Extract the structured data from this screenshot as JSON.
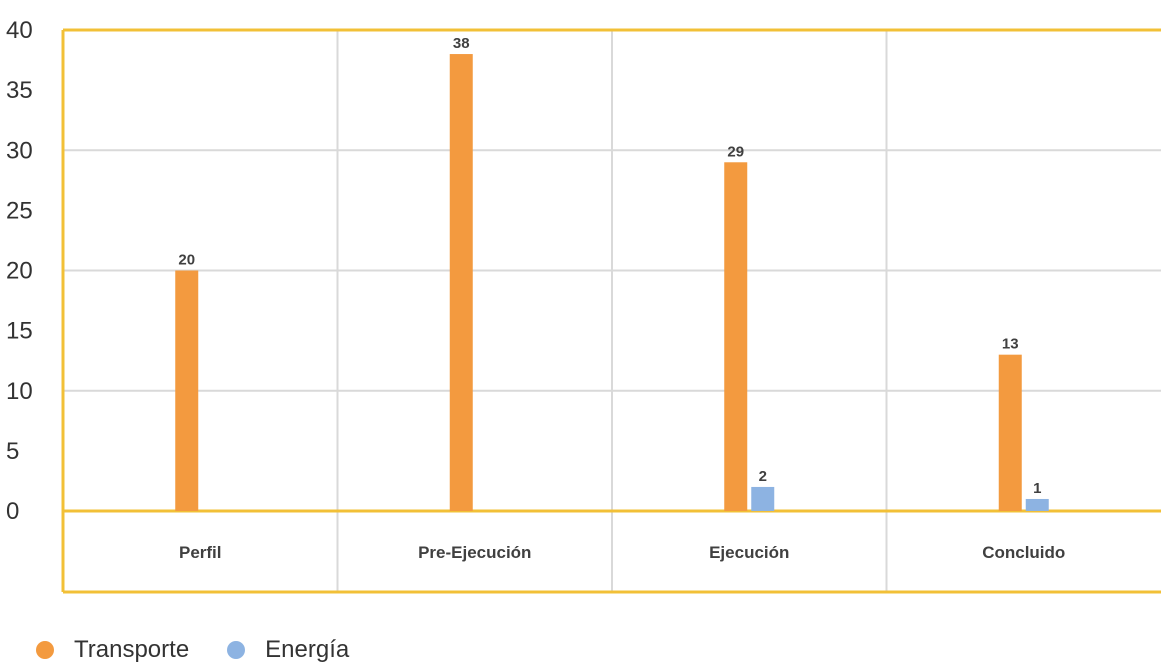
{
  "chart_data": {
    "type": "bar",
    "categories": [
      "Perfil",
      "Pre-Ejecución",
      "Ejecución",
      "Concluido"
    ],
    "series": [
      {
        "name": "Transporte",
        "values": [
          20,
          38,
          29,
          13
        ],
        "labels": [
          "20",
          "38",
          "29",
          "13"
        ],
        "color": "#f39a3f"
      },
      {
        "name": "Energía",
        "values": [
          null,
          null,
          2,
          1
        ],
        "labels": [
          "",
          "",
          "2",
          "1"
        ],
        "color": "#8db3e2"
      }
    ],
    "ylim": [
      0,
      40
    ],
    "yticks": [
      "0",
      "5",
      "10",
      "15",
      "20",
      "25",
      "30",
      "35",
      "40"
    ],
    "grid": true,
    "legend_position": "bottom-left",
    "colors": {
      "frame": "#f2c037",
      "grid": "#d9d9d9"
    }
  }
}
